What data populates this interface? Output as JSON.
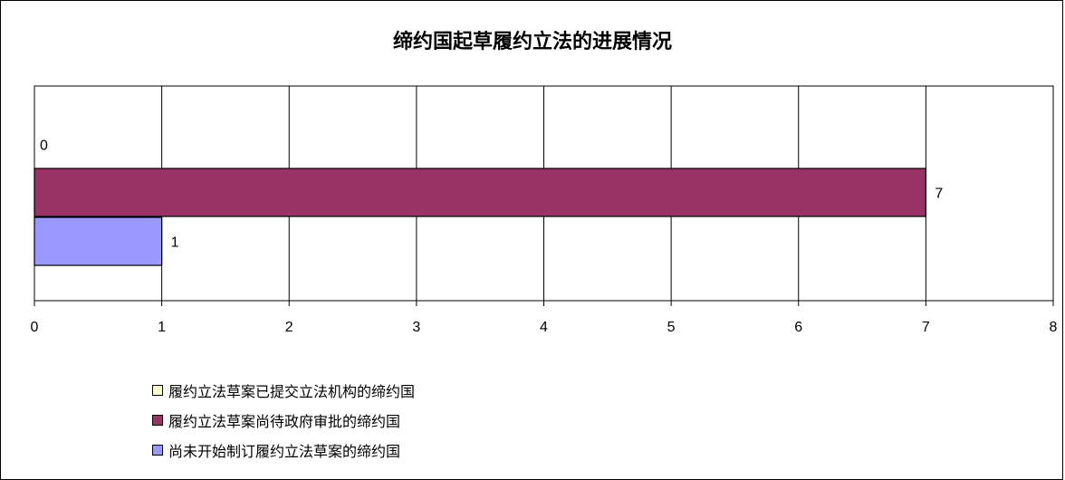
{
  "chart_data": {
    "type": "bar",
    "orientation": "horizontal",
    "title": "缔约国起草履约立法的进展情况",
    "xlim": [
      0,
      8
    ],
    "x_ticks": [
      "0",
      "1",
      "2",
      "3",
      "4",
      "5",
      "6",
      "7",
      "8"
    ],
    "grid": true,
    "legend_position": "bottom",
    "series": [
      {
        "name": "履约立法草案已提交立法机构的缔约国",
        "value": 0,
        "label": "0",
        "color": "#FFFFCC"
      },
      {
        "name": "履约立法草案尚待政府审批的缔约国",
        "value": 7,
        "label": "7",
        "color": "#993366"
      },
      {
        "name": "尚未开始制订履约立法草案的缔约国",
        "value": 1,
        "label": "1",
        "color": "#9999FF"
      }
    ]
  }
}
